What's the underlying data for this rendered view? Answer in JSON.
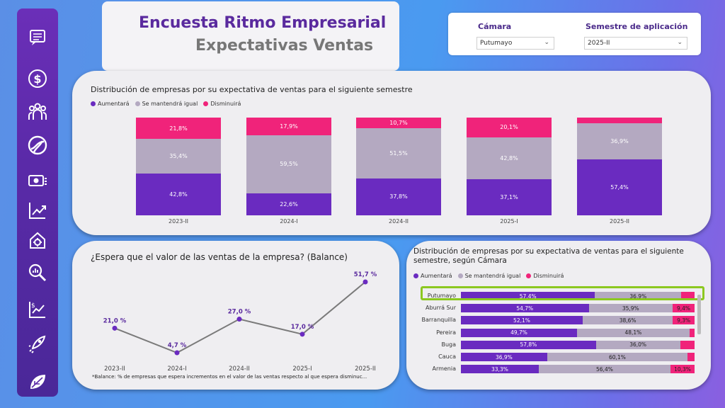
{
  "header": {
    "title": "Encuesta Ritmo Empresarial",
    "subtitle": "Expectativas Ventas"
  },
  "filters": {
    "camara": {
      "label": "Cámara",
      "value": "Putumayo"
    },
    "semestre": {
      "label": "Semestre de aplicación",
      "value": "2025-II"
    }
  },
  "sidebar": {
    "icons": [
      "report-icon",
      "dollar-icon",
      "people-icon",
      "globe-icon",
      "cash-icon",
      "trend-line-icon",
      "gear-house-icon",
      "search-chart-icon",
      "growth-chart-icon",
      "rocket-icon",
      "leaf-icon"
    ]
  },
  "legend": {
    "up": "Aumentará",
    "same": "Se mantendrá igual",
    "down": "Disminuirá"
  },
  "colors": {
    "up": "#6a2bc0",
    "same": "#b4a9c1",
    "down": "#f0237a",
    "highlight": "#8cc820"
  },
  "chart_top": {
    "title": "Distribución de empresas por su expectativa de ventas para el siguiente semestre",
    "type": "bar",
    "stacked": true,
    "categories": [
      "2023-II",
      "2024-I",
      "2024-II",
      "2025-I",
      "2025-II"
    ],
    "series": [
      {
        "name": "Aumentará",
        "values": [
          42.8,
          22.6,
          37.8,
          37.1,
          57.4
        ],
        "labels": [
          "42,8%",
          "22,6%",
          "37,8%",
          "37,1%",
          "57,4%"
        ]
      },
      {
        "name": "Se mantendrá igual",
        "values": [
          35.4,
          59.5,
          51.5,
          42.8,
          36.9
        ],
        "labels": [
          "35,4%",
          "59,5%",
          "51,5%",
          "42,8%",
          "36,9%"
        ]
      },
      {
        "name": "Disminuirá",
        "values": [
          21.8,
          17.9,
          10.7,
          20.1,
          5.7
        ],
        "labels": [
          "21,8%",
          "17,9%",
          "10,7%",
          "20,1%",
          ""
        ]
      }
    ]
  },
  "chart_line": {
    "title": "¿Espera que el valor de las ventas de la empresa? (Balance)",
    "type": "line",
    "categories": [
      "2023-II",
      "2024-I",
      "2024-II",
      "2025-I",
      "2025-II"
    ],
    "values": [
      21.0,
      4.7,
      27.0,
      17.0,
      51.7
    ],
    "labels": [
      "21,0 %",
      "4,7 %",
      "27,0 %",
      "17,0 %",
      "51,7 %"
    ],
    "footnote": "*Balance: % de empresas que espera incrementos en el valor de las ventas respecto al que espera disminuc..."
  },
  "chart_camara": {
    "title": "Distribución de empresas por su expectativa de ventas para el siguiente semestre, según Cámara",
    "type": "bar",
    "stacked": true,
    "orientation": "horizontal",
    "categories": [
      "Putumayo",
      "Aburrá Sur",
      "Barranquilla",
      "Pereira",
      "Buga",
      "Cauca",
      "Armenia"
    ],
    "series": [
      {
        "name": "Aumentará",
        "values": [
          57.4,
          54.7,
          52.1,
          49.7,
          57.8,
          36.9,
          33.3
        ],
        "labels": [
          "57,4%",
          "54,7%",
          "52,1%",
          "49,7%",
          "57,8%",
          "36,9%",
          "33,3%"
        ]
      },
      {
        "name": "Se mantendrá igual",
        "values": [
          36.9,
          35.9,
          38.6,
          48.1,
          36.0,
          60.1,
          56.4
        ],
        "labels": [
          "36,9%",
          "35,9%",
          "38,6%",
          "48,1%",
          "36,0%",
          "60,1%",
          "56,4%"
        ]
      },
      {
        "name": "Disminuirá",
        "values": [
          5.7,
          9.4,
          9.3,
          2.2,
          6.2,
          3.0,
          10.3
        ],
        "labels": [
          "",
          "9,4%",
          "9,3%",
          "",
          "",
          "",
          "10,3%"
        ]
      }
    ]
  },
  "chart_data": [
    {
      "type": "bar",
      "title": "Distribución de empresas por su expectativa de ventas para el siguiente semestre",
      "categories": [
        "2023-II",
        "2024-I",
        "2024-II",
        "2025-I",
        "2025-II"
      ],
      "series": [
        {
          "name": "Aumentará",
          "values": [
            42.8,
            22.6,
            37.8,
            37.1,
            57.4
          ]
        },
        {
          "name": "Se mantendrá igual",
          "values": [
            35.4,
            59.5,
            51.5,
            42.8,
            36.9
          ]
        },
        {
          "name": "Disminuirá",
          "values": [
            21.8,
            17.9,
            10.7,
            20.1,
            5.7
          ]
        }
      ]
    },
    {
      "type": "line",
      "title": "¿Espera que el valor de las ventas de la empresa? (Balance)",
      "categories": [
        "2023-II",
        "2024-I",
        "2024-II",
        "2025-I",
        "2025-II"
      ],
      "values": [
        21.0,
        4.7,
        27.0,
        17.0,
        51.7
      ]
    },
    {
      "type": "bar",
      "title": "Distribución de empresas por su expectativa de ventas para el siguiente semestre, según Cámara",
      "categories": [
        "Putumayo",
        "Aburrá Sur",
        "Barranquilla",
        "Pereira",
        "Buga",
        "Cauca",
        "Armenia"
      ],
      "series": [
        {
          "name": "Aumentará",
          "values": [
            57.4,
            54.7,
            52.1,
            49.7,
            57.8,
            36.9,
            33.3
          ]
        },
        {
          "name": "Se mantendrá igual",
          "values": [
            36.9,
            35.9,
            38.6,
            48.1,
            36.0,
            60.1,
            56.4
          ]
        },
        {
          "name": "Disminuirá",
          "values": [
            5.7,
            9.4,
            9.3,
            2.2,
            6.2,
            3.0,
            10.3
          ]
        }
      ]
    }
  ]
}
